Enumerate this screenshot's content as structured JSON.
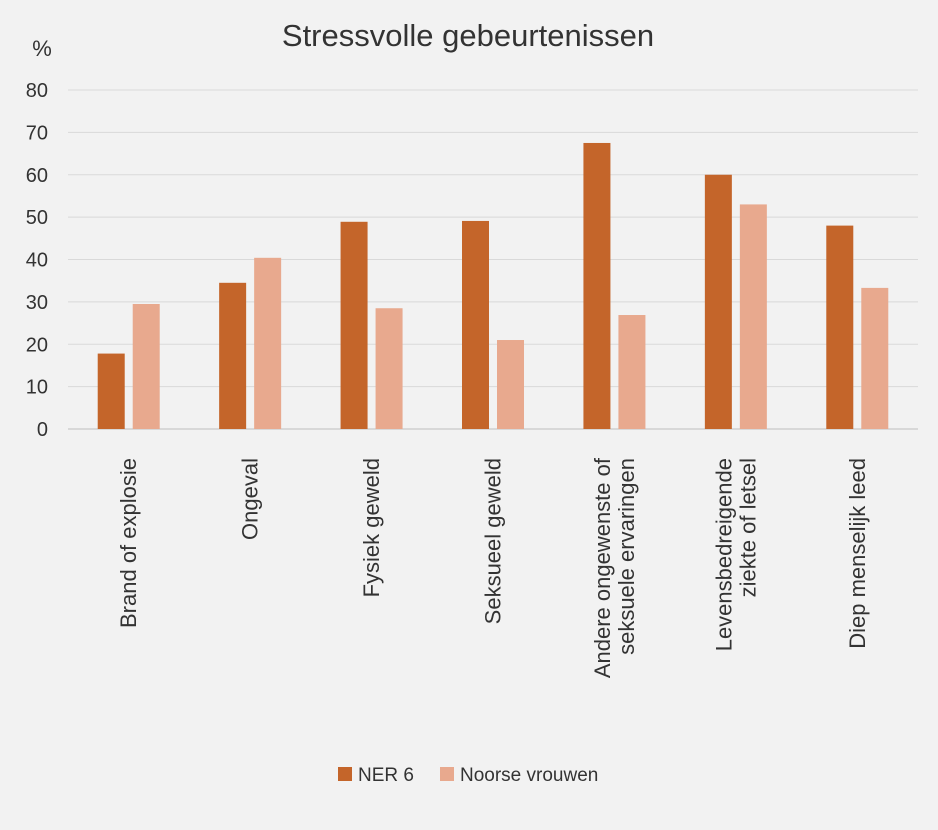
{
  "chart_data": {
    "type": "bar",
    "title": "Stressvolle gebeurtenissen",
    "ylabel": "%",
    "xlabel": "",
    "ylim": [
      0,
      80
    ],
    "yticks": [
      0,
      10,
      20,
      30,
      40,
      50,
      60,
      70,
      80
    ],
    "grid": true,
    "legend_position": "bottom",
    "categories": [
      [
        "Brand of explosie"
      ],
      [
        "Ongeval"
      ],
      [
        "Fysiek geweld"
      ],
      [
        "Seksueel geweld"
      ],
      [
        "Andere ongewenste of",
        "seksuele ervaringen"
      ],
      [
        "Levensbedreigende",
        "ziekte of letsel"
      ],
      [
        "Diep menselijk leed"
      ]
    ],
    "series": [
      {
        "name": "NER 6",
        "color": "#c4652a",
        "values": [
          17.8,
          34.5,
          48.9,
          49.1,
          67.5,
          60.0,
          48.0
        ]
      },
      {
        "name": "Noorse vrouwen",
        "color": "#e8a98e",
        "values": [
          29.5,
          40.4,
          28.5,
          21.0,
          26.9,
          53.0,
          33.3
        ]
      }
    ]
  }
}
